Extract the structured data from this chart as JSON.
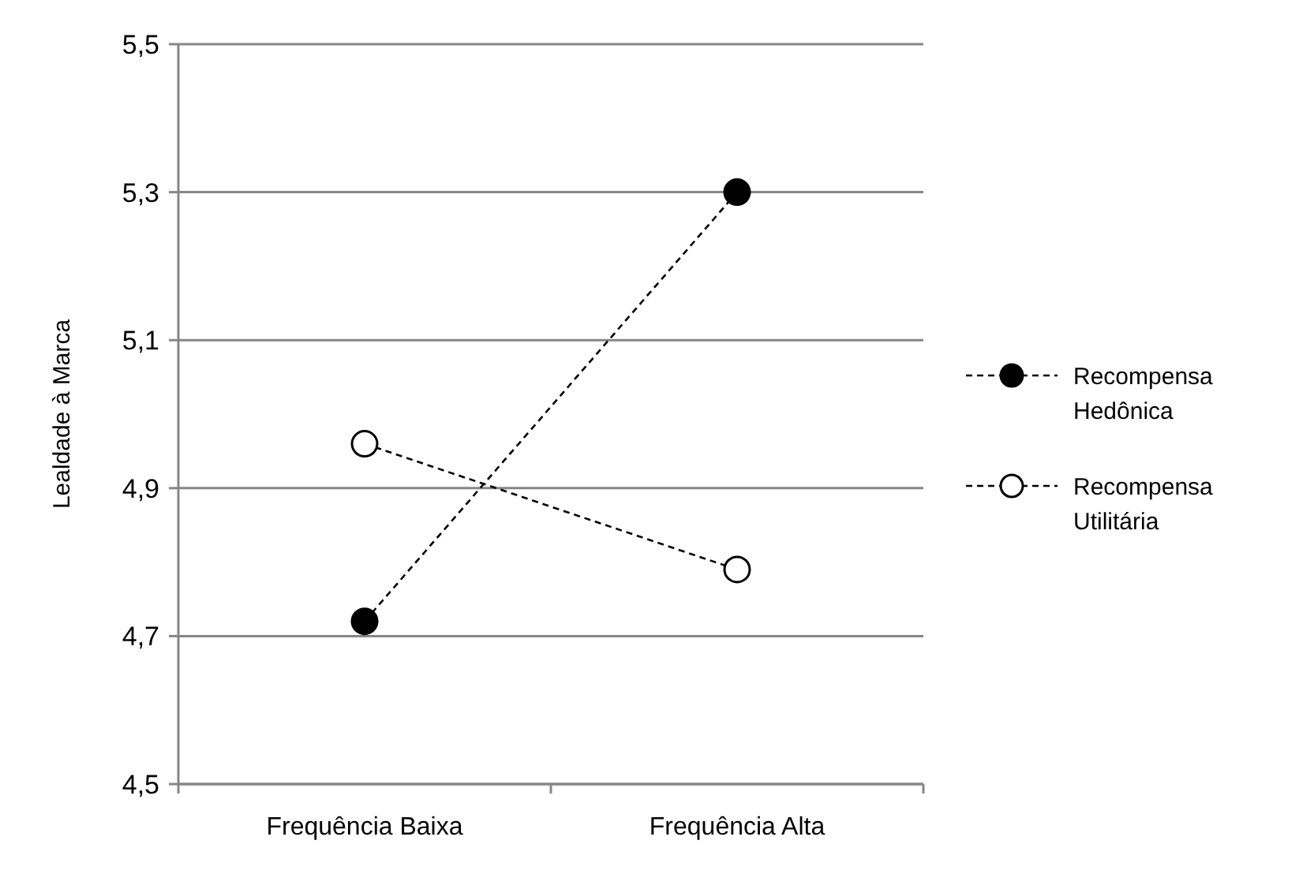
{
  "chart_data": {
    "type": "line",
    "ylabel": "Lealdade à Marca",
    "categories": [
      "Frequência Baixa",
      "Frequência Alta"
    ],
    "series": [
      {
        "name": "Recompensa Hedônica",
        "color": "#000000",
        "values": [
          4.72,
          5.3
        ]
      },
      {
        "name": "Recompensa Utilitária",
        "color": "#000000",
        "values": [
          4.96,
          4.79
        ]
      }
    ],
    "ylim": [
      4.5,
      5.5
    ],
    "yticks": [
      {
        "value": 4.5,
        "label": "4,5"
      },
      {
        "value": 4.7,
        "label": "4,7"
      },
      {
        "value": 4.9,
        "label": "4,9"
      },
      {
        "value": 5.1,
        "label": "5,1"
      },
      {
        "value": 5.3,
        "label": "5,3"
      },
      {
        "value": 5.5,
        "label": "5,5"
      }
    ],
    "grid": "y",
    "legend": "right",
    "marker": "circle",
    "line_style": "dashed"
  }
}
